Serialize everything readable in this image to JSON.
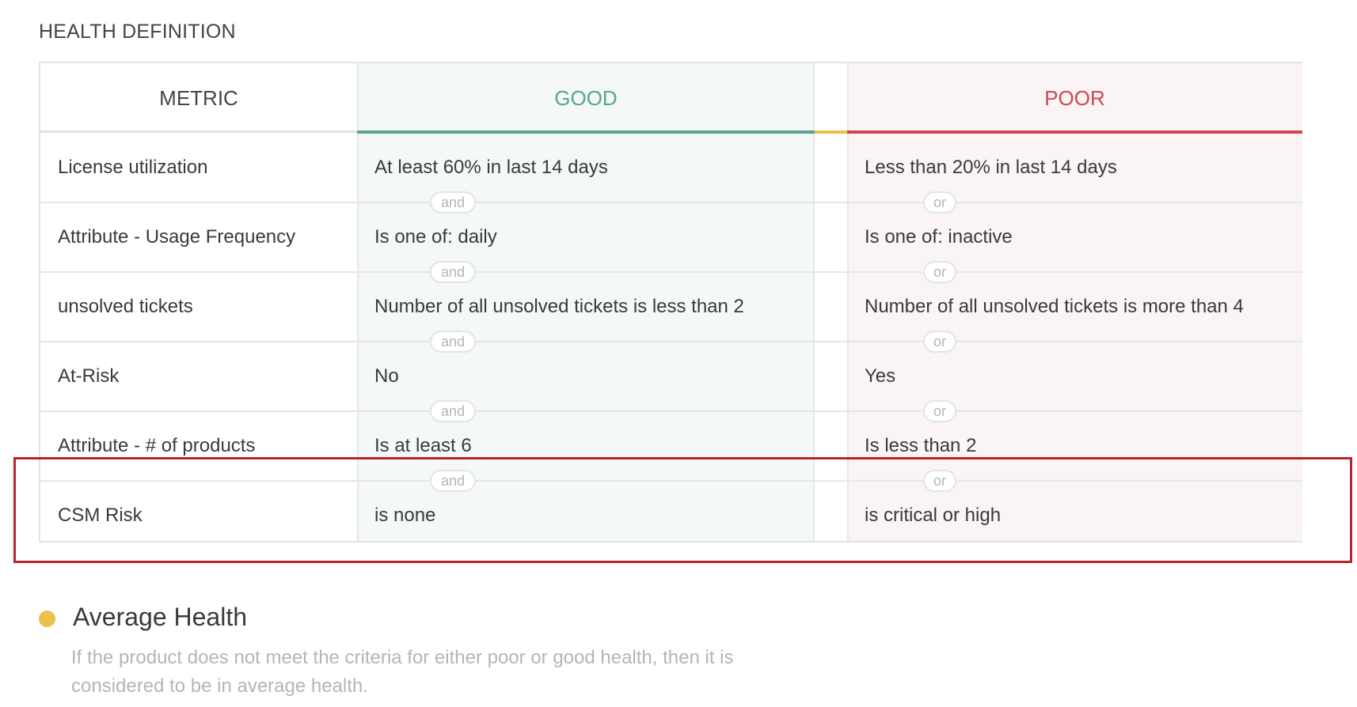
{
  "section_title": "HEALTH DEFINITION",
  "headers": {
    "metric": "METRIC",
    "good": "GOOD",
    "poor": "POOR"
  },
  "rows": [
    {
      "metric": "License utilization",
      "good": "At least 60% in last 14 days",
      "poor": "Less than 20% in last 14 days"
    },
    {
      "metric": "Attribute - Usage Frequency",
      "good": "Is one of: daily",
      "poor": "Is one of: inactive"
    },
    {
      "metric": "unsolved tickets",
      "good": "Number of all unsolved tickets is less than 2",
      "poor": "Number of all unsolved tickets is more than 4"
    },
    {
      "metric": "At-Risk",
      "good": "No",
      "poor": "Yes"
    },
    {
      "metric": "Attribute - # of products",
      "good": "Is at least 6",
      "poor": "Is less than 2"
    },
    {
      "metric": "CSM Risk",
      "good": "is none",
      "poor": "is critical or high"
    }
  ],
  "connectors": {
    "good": "and",
    "poor": "or"
  },
  "average_health": {
    "title": "Average Health",
    "description": "If the product does not meet the criteria for either poor or good health, then it is considered to be in average health."
  },
  "colors": {
    "good": "#5aa58c",
    "poor": "#d2454f",
    "average": "#eac24a",
    "highlight": "#b8242b"
  }
}
